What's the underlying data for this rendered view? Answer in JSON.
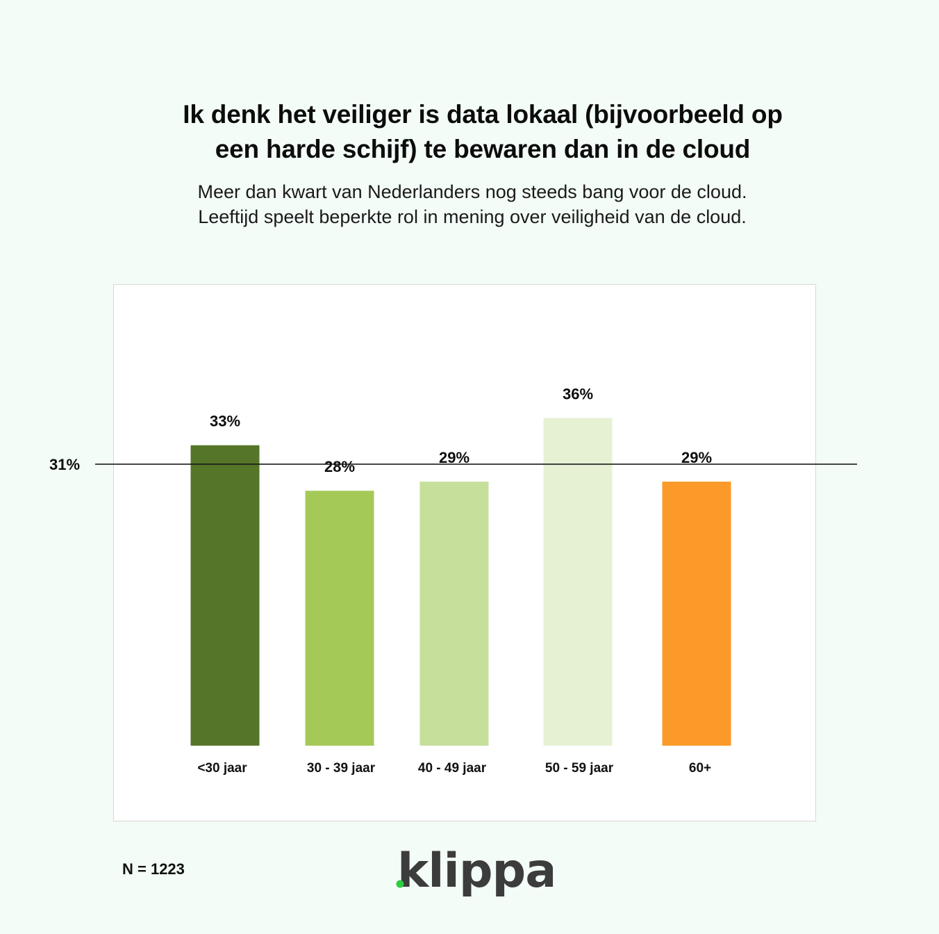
{
  "header": {
    "title_line1": "Ik denk het veiliger is data lokaal (bijvoorbeeld op",
    "title_line2": "een harde schijf) te bewaren dan in de cloud",
    "subtitle_line1": "Meer dan kwart van Nederlanders nog steeds bang voor de cloud.",
    "subtitle_line2": "Leeftijd speelt beperkte rol in mening over veiligheid van de cloud."
  },
  "footer": {
    "n_label": "N = 1223"
  },
  "logo": {
    "text": "klippa",
    "text_color": "#3c3c3c",
    "dot_color": "#2ecc40"
  },
  "chart_data": {
    "type": "bar",
    "categories": [
      "<30 jaar",
      "30 - 39 jaar",
      "40 - 49 jaar",
      "50 - 59 jaar",
      "60+"
    ],
    "values": [
      33,
      28,
      29,
      36,
      29
    ],
    "value_labels": [
      "33%",
      "28%",
      "29%",
      "36%",
      "29%"
    ],
    "colors": [
      "#557628",
      "#a5c957",
      "#c6df9b",
      "#e6f1d4",
      "#fb9a28"
    ],
    "reference_line": {
      "value": 31,
      "label": "31%"
    },
    "ylim": [
      0,
      36
    ],
    "grid": false,
    "legend": "none"
  }
}
